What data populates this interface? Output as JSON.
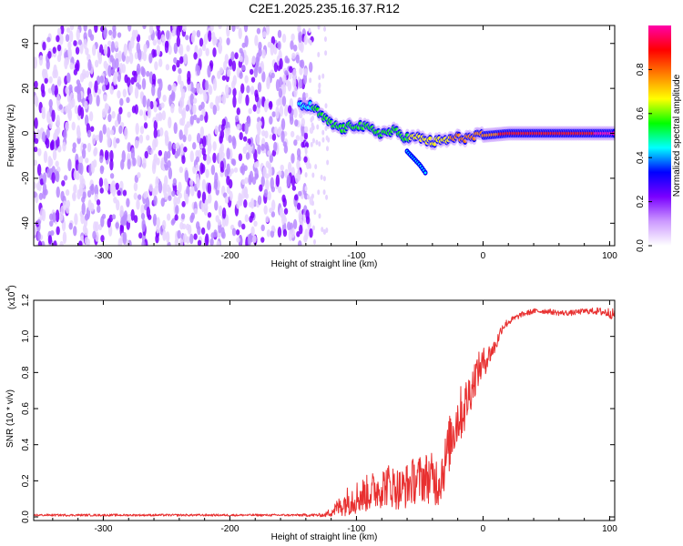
{
  "title": "C2E1.2025.235.16.37.R12",
  "chart_data": [
    {
      "type": "heatmap",
      "xlabel": "Height of straight line (km)",
      "ylabel": "Frequency (Hz)",
      "xlim": [
        -355,
        104
      ],
      "ylim": [
        -50,
        48
      ],
      "xticks": [
        -300,
        -200,
        -100,
        0,
        100
      ],
      "xtick_labels": [
        "-300",
        "-200",
        "-100",
        "0",
        "100"
      ],
      "yticks": [
        -40,
        -20,
        0,
        20,
        40
      ],
      "ytick_labels": [
        "-40",
        "-20",
        "0",
        "20",
        "40"
      ],
      "noise_region": {
        "x_from": -355,
        "x_to": -135,
        "amplitude": "low"
      },
      "signal_trace": {
        "x": [
          -145,
          -135,
          -128,
          -120,
          -110,
          -100,
          -90,
          -80,
          -70,
          -60,
          -50,
          -40,
          -30,
          -20,
          -10,
          0,
          20,
          40,
          60,
          80,
          100,
          104
        ],
        "y": [
          12,
          12,
          8,
          4,
          2,
          4,
          2,
          0,
          1,
          -2,
          -2,
          -4,
          -3,
          -2,
          -2,
          -1,
          0,
          0,
          0,
          0,
          0,
          0
        ],
        "amplitude": [
          0.45,
          0.5,
          0.5,
          0.55,
          0.6,
          0.55,
          0.5,
          0.55,
          0.6,
          0.6,
          0.65,
          0.65,
          0.7,
          0.75,
          0.75,
          0.8,
          0.85,
          0.9,
          0.92,
          0.94,
          0.95,
          0.95
        ]
      },
      "branch": {
        "x": [
          -60,
          -50,
          -45
        ],
        "y": [
          -8,
          -14,
          -18
        ]
      },
      "colorbar": {
        "label": "Normalized spectral amplitude",
        "range": [
          0,
          1
        ],
        "ticks": [
          0.0,
          0.2,
          0.4,
          0.6,
          0.8
        ],
        "tick_labels": [
          "0.0",
          "0.2",
          "0.4",
          "0.6",
          "0.8"
        ],
        "colors": [
          "#ffffff",
          "#cc99ff",
          "#7a00ff",
          "#0000ff",
          "#00ffff",
          "#00ff00",
          "#ffff00",
          "#ff8000",
          "#ff0000",
          "#ff00aa"
        ]
      }
    },
    {
      "type": "line",
      "xlabel": "Height of straight line (km)",
      "ylabel": "SNR (10 * v/v)",
      "y_multiplier_label": "(x10",
      "y_multiplier_exp": "4",
      "y_multiplier_close": ")",
      "xlim": [
        -355,
        104
      ],
      "ylim": [
        -0.02,
        1.2
      ],
      "xticks": [
        -300,
        -200,
        -100,
        0,
        100
      ],
      "xtick_labels": [
        "-300",
        "-200",
        "-100",
        "0",
        "100"
      ],
      "yticks": [
        0.0,
        0.2,
        0.4,
        0.6,
        0.8,
        1.0,
        1.2
      ],
      "ytick_labels": [
        "0.0",
        "0.2",
        "0.4",
        "0.6",
        "0.8",
        "1.0",
        "1.2"
      ],
      "series": [
        {
          "name": "SNR",
          "color": "#e83030",
          "x": [
            -355,
            -300,
            -250,
            -200,
            -150,
            -125,
            -115,
            -105,
            -95,
            -85,
            -75,
            -65,
            -55,
            -45,
            -35,
            -30,
            -25,
            -20,
            -15,
            -10,
            -5,
            0,
            5,
            10,
            15,
            20,
            30,
            40,
            50,
            60,
            70,
            80,
            90,
            100,
            104
          ],
          "y": [
            0.01,
            0.01,
            0.01,
            0.01,
            0.01,
            0.01,
            0.05,
            0.1,
            0.12,
            0.15,
            0.18,
            0.15,
            0.2,
            0.22,
            0.2,
            0.3,
            0.45,
            0.55,
            0.6,
            0.7,
            0.8,
            0.85,
            0.9,
            0.95,
            1.05,
            1.08,
            1.12,
            1.14,
            1.14,
            1.13,
            1.13,
            1.14,
            1.14,
            1.13,
            1.12
          ],
          "noise_amp": [
            0.006,
            0.006,
            0.006,
            0.006,
            0.006,
            0.01,
            0.05,
            0.09,
            0.1,
            0.11,
            0.12,
            0.12,
            0.13,
            0.14,
            0.15,
            0.15,
            0.16,
            0.16,
            0.15,
            0.12,
            0.1,
            0.09,
            0.06,
            0.04,
            0.03,
            0.02,
            0.015,
            0.015,
            0.015,
            0.015,
            0.015,
            0.015,
            0.02,
            0.03,
            0.03
          ]
        }
      ]
    }
  ]
}
